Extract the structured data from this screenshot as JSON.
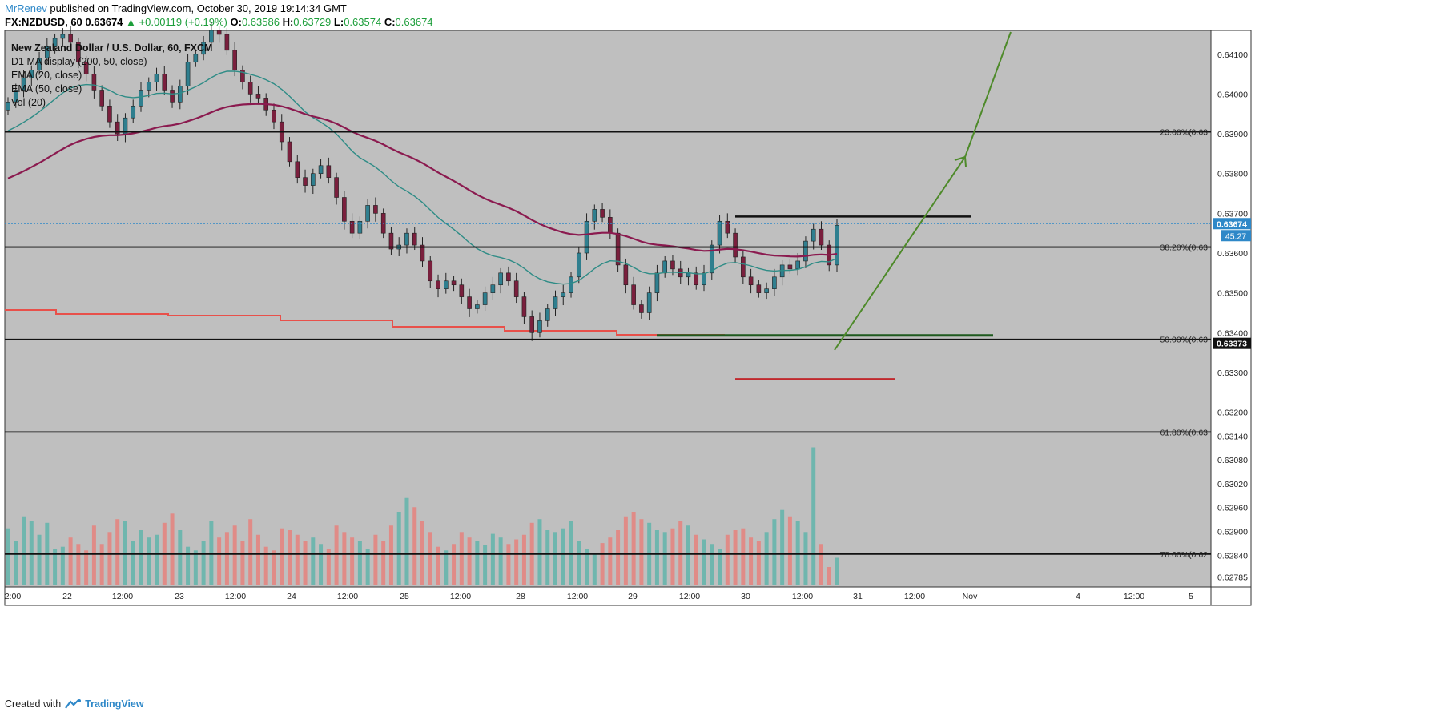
{
  "header": {
    "author": "MrRenev",
    "published_text": "published on TradingView.com, October 30, 2019 19:14:34 GMT"
  },
  "quote": {
    "symbol": "FX:NZDUSD, 60",
    "price": "0.63674",
    "change": "▲ +0.00119 (+0.19%)",
    "open_label": "O:",
    "open": "0.63586",
    "high_label": "H:",
    "high": "0.63729",
    "low_label": "L:",
    "low": "0.63574",
    "close_label": "C:",
    "close": "0.63674"
  },
  "legend": [
    "New Zealand Dollar / U.S. Dollar, 60, FXCM",
    "D1 MA display (200, 50, close)",
    "EMA (20, close)",
    "EMA (50, close)",
    "Vol (20)"
  ],
  "footer": {
    "created_with": "Created with",
    "brand": "TradingView"
  },
  "colors": {
    "plot_bg": "#bfbfbf",
    "bull": "#2f7f8f",
    "bear": "#7a1f3d",
    "vol_bull": "#6fb6ae",
    "vol_bear": "#e08b87",
    "ema20": "#2e8c86",
    "ema50": "#8b1a4f",
    "ma200_d1": "#e8504a",
    "arrow": "#4e8a2a",
    "price_tag": "#2e88c8"
  },
  "chart_data": {
    "type": "candlestick",
    "symbol": "FX:NZDUSD",
    "timeframe": "60",
    "ylim": [
      0.6276,
      0.6416
    ],
    "y_ticks": [
      0.641,
      0.64,
      0.639,
      0.638,
      0.637,
      0.636,
      0.635,
      0.634,
      0.633,
      0.632,
      0.6314,
      0.6308,
      0.6302,
      0.6296,
      0.629,
      0.6284,
      0.62785
    ],
    "y_tick_labels": [
      "0.64100",
      "0.64000",
      "0.63900",
      "0.63800",
      "0.63700",
      "0.63600",
      "0.63500",
      "0.63400",
      "0.63300",
      "0.63200",
      "0.63140",
      "0.63080",
      "0.63020",
      "0.62960",
      "0.62900",
      "0.62840",
      "0.62785"
    ],
    "x_tick_labels": [
      "2:00",
      "22",
      "12:00",
      "23",
      "12:00",
      "24",
      "12:00",
      "25",
      "12:00",
      "28",
      "12:00",
      "29",
      "12:00",
      "30",
      "12:00",
      "31",
      "12:00",
      "Nov",
      "4",
      "12:00",
      "5"
    ],
    "current_price": 0.63674,
    "current_price_label": "0.63674",
    "countdown": "45:27",
    "cursor_price_label": "0.63373",
    "fib_levels": [
      {
        "label": "23.60%(0.63",
        "price": 0.63905
      },
      {
        "label": "38.20%(0.63",
        "price": 0.63615
      },
      {
        "label": "50.00%(0.63",
        "price": 0.63383
      },
      {
        "label": "61.80%(0.63",
        "price": 0.6315
      },
      {
        "label": "78.60%(0.62",
        "price": 0.62843
      }
    ],
    "resistance_line": 0.63692,
    "support_line": 0.63393,
    "stop_line": 0.63283,
    "closes": [
      0.6398,
      0.6401,
      0.6404,
      0.6406,
      0.6409,
      0.6412,
      0.6414,
      0.6415,
      0.6413,
      0.6408,
      0.6405,
      0.6401,
      0.6397,
      0.6393,
      0.639,
      0.6394,
      0.6397,
      0.6401,
      0.6403,
      0.6405,
      0.6401,
      0.6398,
      0.6402,
      0.6408,
      0.641,
      0.6413,
      0.6416,
      0.6415,
      0.6411,
      0.6406,
      0.6403,
      0.64,
      0.6399,
      0.6396,
      0.6393,
      0.6388,
      0.6383,
      0.6379,
      0.6377,
      0.638,
      0.6382,
      0.6379,
      0.6374,
      0.6368,
      0.6365,
      0.6368,
      0.6372,
      0.637,
      0.6365,
      0.6361,
      0.6362,
      0.6365,
      0.6362,
      0.6358,
      0.6353,
      0.6351,
      0.6353,
      0.6352,
      0.6349,
      0.6346,
      0.6347,
      0.635,
      0.6352,
      0.6355,
      0.6353,
      0.6349,
      0.6344,
      0.634,
      0.6343,
      0.6346,
      0.6349,
      0.635,
      0.6354,
      0.636,
      0.6368,
      0.6371,
      0.6369,
      0.6365,
      0.6357,
      0.6352,
      0.6347,
      0.6345,
      0.635,
      0.6355,
      0.6358,
      0.6356,
      0.6354,
      0.6355,
      0.6352,
      0.6355,
      0.6362,
      0.6368,
      0.6365,
      0.6359,
      0.6354,
      0.6352,
      0.635,
      0.6351,
      0.6354,
      0.6357,
      0.6356,
      0.6358,
      0.6363,
      0.6366,
      0.6362,
      0.6357,
      0.6367
    ],
    "volumes": [
      62,
      48,
      75,
      70,
      55,
      68,
      40,
      42,
      52,
      45,
      38,
      65,
      45,
      58,
      72,
      70,
      48,
      60,
      52,
      55,
      68,
      78,
      60,
      42,
      38,
      48,
      70,
      52,
      58,
      65,
      48,
      72,
      55,
      42,
      38,
      62,
      60,
      55,
      48,
      52,
      45,
      40,
      65,
      58,
      52,
      48,
      40,
      55,
      48,
      65,
      80,
      95,
      85,
      70,
      58,
      42,
      38,
      45,
      58,
      52,
      48,
      44,
      56,
      52,
      45,
      50,
      55,
      68,
      72,
      60,
      58,
      62,
      70,
      48,
      40,
      35,
      46,
      52,
      60,
      75,
      80,
      72,
      68,
      60,
      58,
      62,
      70,
      65,
      55,
      50,
      45,
      40,
      55,
      60,
      62,
      52,
      48,
      58,
      72,
      82,
      75,
      70,
      58,
      150,
      45,
      20,
      30
    ]
  }
}
